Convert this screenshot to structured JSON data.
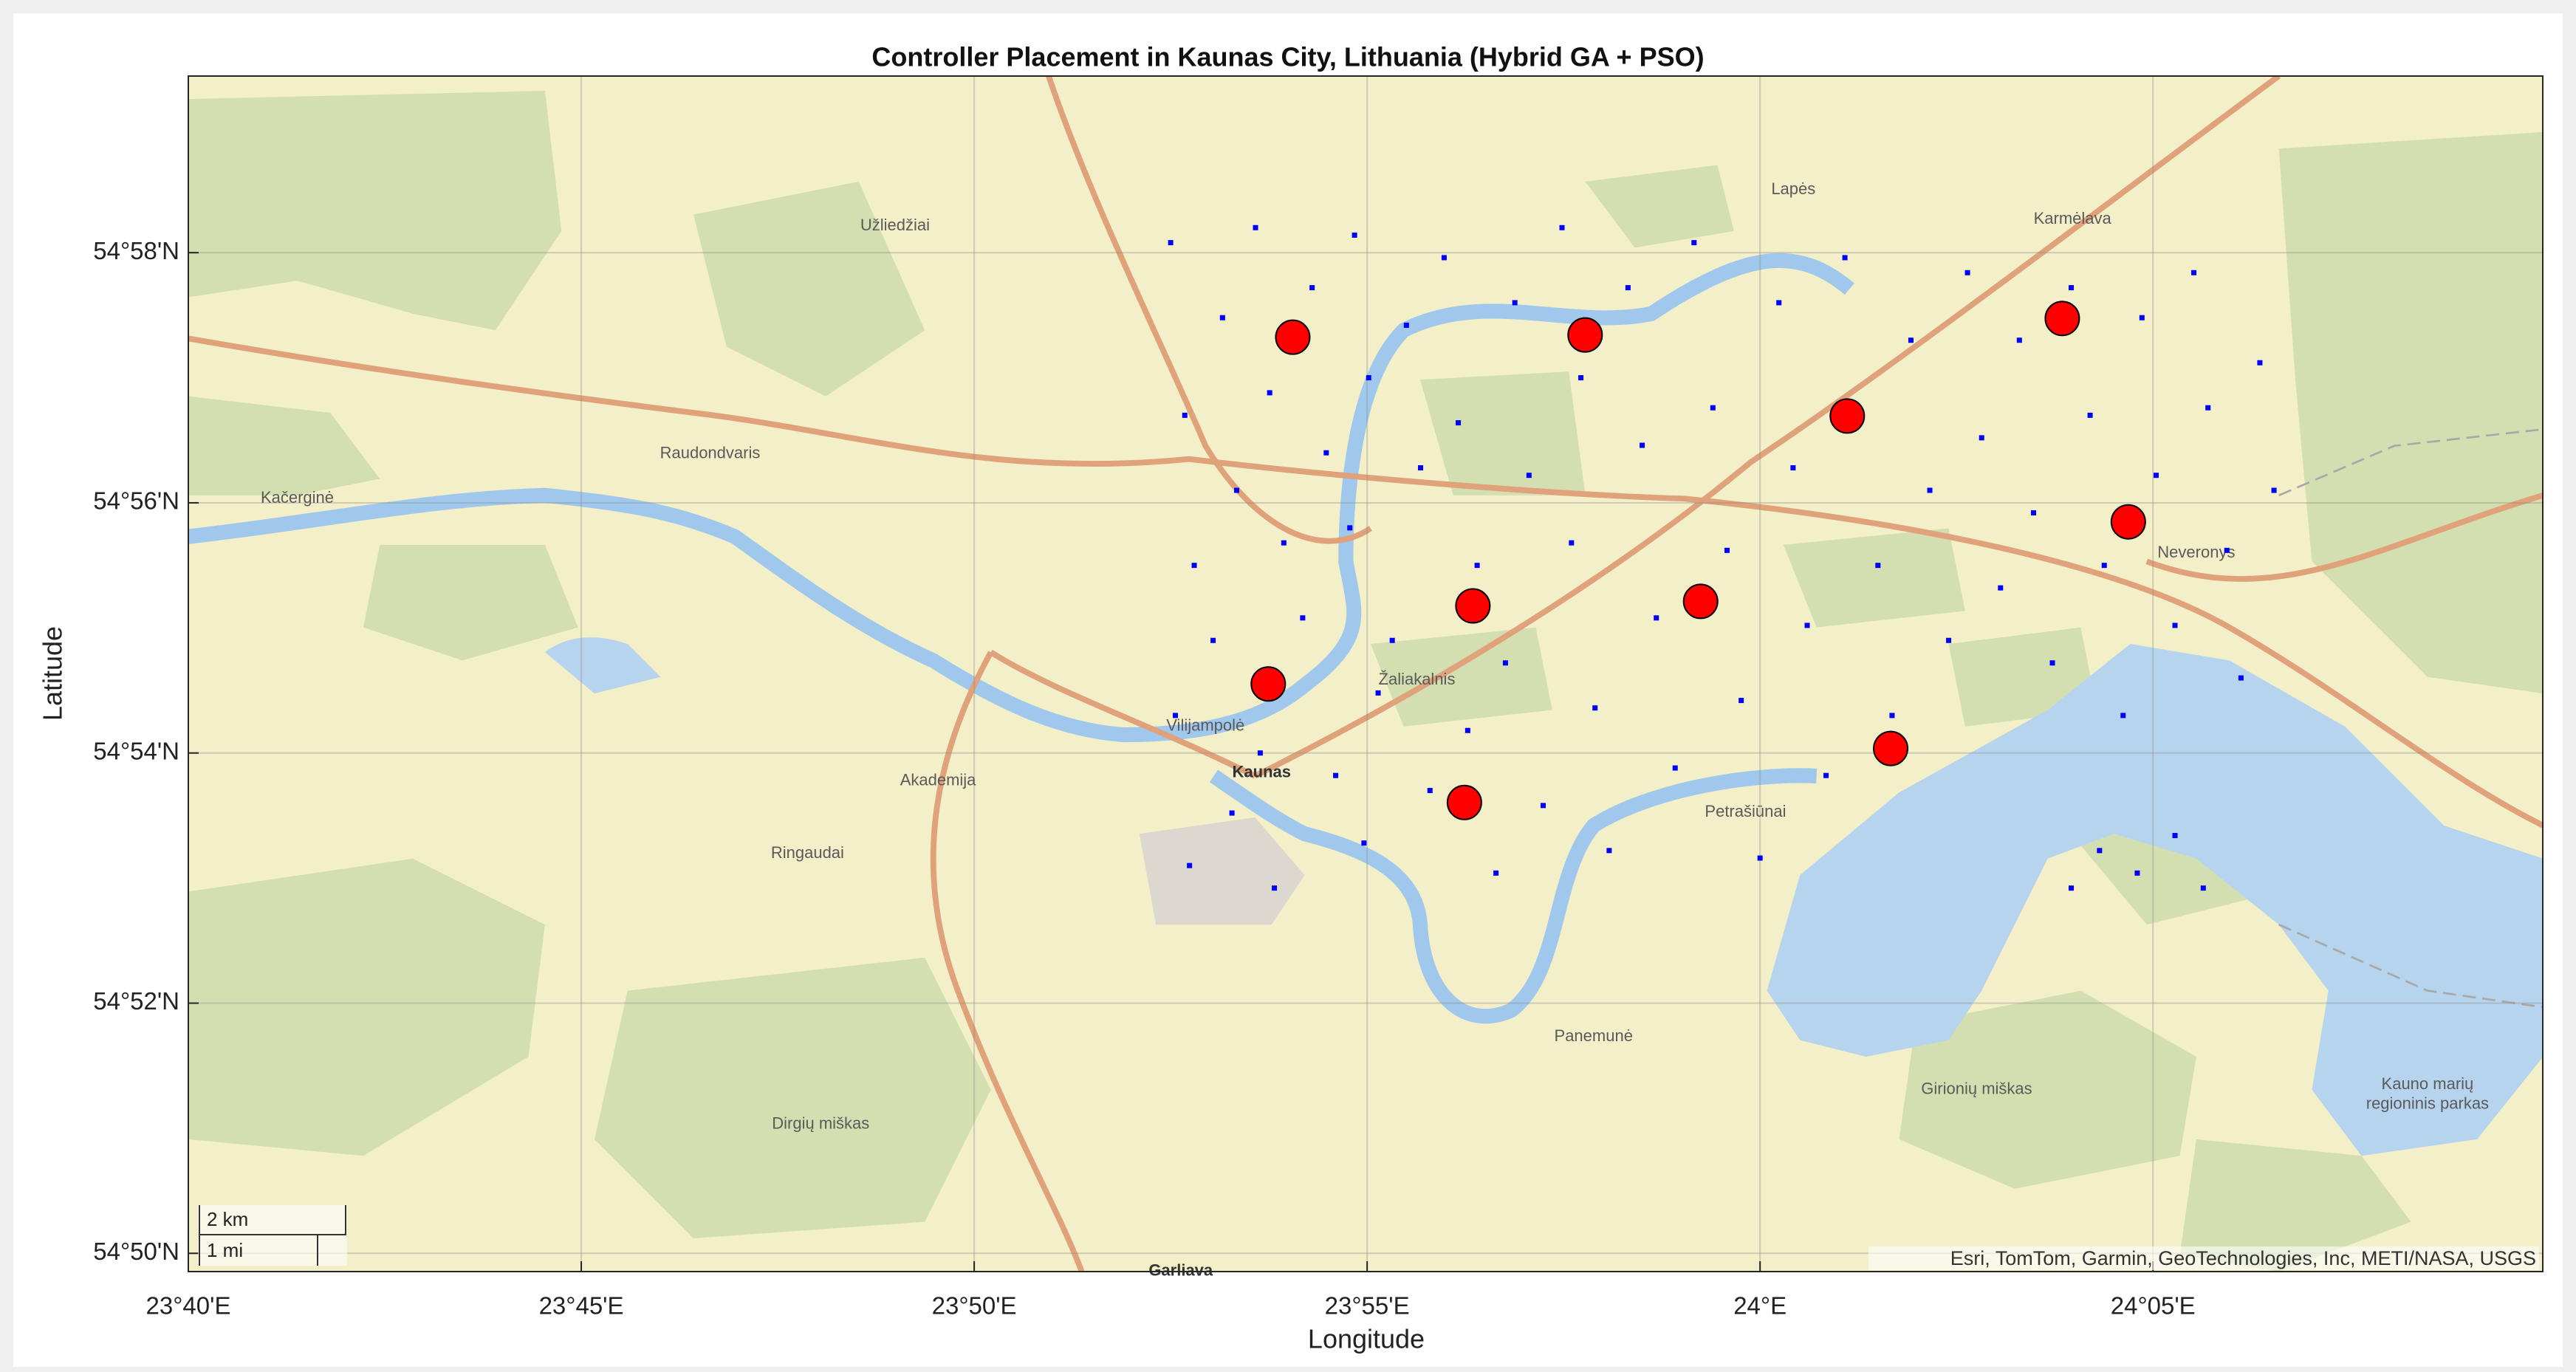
{
  "chart_data": {
    "type": "scatter",
    "title": "Controller Placement in Kaunas City, Lithuania (Hybrid GA + PSO)",
    "x_label": "Longitude",
    "y_label": "Latitude",
    "xlim": [
      23.666667,
      24.166
    ],
    "ylim": [
      54.8309,
      54.9902
    ],
    "xticks": [
      {
        "value": 23.666667,
        "label": "23°40'E"
      },
      {
        "value": 23.75,
        "label": "23°45'E"
      },
      {
        "value": 23.833333,
        "label": "23°50'E"
      },
      {
        "value": 23.916667,
        "label": "23°55'E"
      },
      {
        "value": 24,
        "label": "24°E"
      },
      {
        "value": 24.083333,
        "label": "24°05'E"
      }
    ],
    "yticks": [
      {
        "value": 54.833333,
        "label": "54°50'N"
      },
      {
        "value": 54.866667,
        "label": "54°52'N"
      },
      {
        "value": 54.9,
        "label": "54°54'N"
      },
      {
        "value": 54.933333,
        "label": "54°56'N"
      },
      {
        "value": 54.966667,
        "label": "54°58'N"
      }
    ],
    "grid": true,
    "series": [
      {
        "color": "#0000ff",
        "marker": "square",
        "x": [
          23.875,
          23.878,
          23.88,
          23.876,
          23.879,
          23.886,
          23.889,
          23.884,
          23.888,
          23.893,
          23.896,
          23.899,
          23.894,
          23.897,
          23.905,
          23.908,
          23.903,
          23.91,
          23.914,
          23.917,
          23.913,
          23.919,
          23.916,
          23.925,
          23.928,
          23.922,
          23.93,
          23.933,
          23.936,
          23.94,
          23.938,
          23.944,
          23.948,
          23.951,
          23.946,
          23.954,
          23.958,
          23.962,
          23.96,
          23.965,
          23.968,
          23.972,
          23.975,
          23.978,
          23.982,
          23.986,
          23.99,
          23.993,
          23.996,
          24.0,
          24.004,
          24.007,
          24.01,
          24.014,
          24.018,
          24.021,
          24.025,
          24.028,
          24.032,
          24.036,
          24.04,
          24.044,
          24.047,
          24.051,
          24.055,
          24.058,
          24.062,
          24.066,
          24.07,
          24.073,
          24.077,
          24.081,
          24.084,
          24.088,
          24.092,
          24.095,
          24.099,
          24.102,
          24.106,
          24.109,
          24.072,
          24.08,
          24.088,
          24.094,
          24.066
        ],
        "values": [
          54.968,
          54.945,
          54.925,
          54.905,
          54.885,
          54.958,
          54.935,
          54.915,
          54.892,
          54.97,
          54.948,
          54.928,
          54.9,
          54.882,
          54.962,
          54.94,
          54.918,
          54.897,
          54.969,
          54.95,
          54.93,
          54.908,
          54.888,
          54.957,
          54.938,
          54.915,
          54.895,
          54.966,
          54.944,
          54.925,
          54.903,
          54.884,
          54.96,
          54.937,
          54.912,
          54.893,
          54.97,
          54.95,
          54.928,
          54.906,
          54.887,
          54.962,
          54.941,
          54.918,
          54.898,
          54.968,
          54.946,
          54.927,
          54.907,
          54.886,
          54.96,
          54.938,
          54.917,
          54.897,
          54.966,
          54.944,
          54.925,
          54.905,
          54.955,
          54.935,
          54.915,
          54.964,
          54.942,
          54.922,
          54.955,
          54.932,
          54.912,
          54.962,
          54.945,
          54.925,
          54.905,
          54.958,
          54.937,
          54.917,
          54.964,
          54.946,
          54.927,
          54.91,
          54.952,
          54.935,
          54.887,
          54.884,
          54.889,
          54.882,
          54.882
        ]
      },
      {
        "color": "#ff0000",
        "marker": "circle",
        "x": [
          23.9009,
          23.9629,
          24.0641,
          24.0185,
          24.0781,
          23.9391,
          23.9874,
          23.8957,
          24.0277,
          23.9373
        ],
        "values": [
          54.9554,
          54.9557,
          54.9579,
          54.9449,
          54.9308,
          54.9196,
          54.9202,
          54.9092,
          54.9006,
          54.8934
        ]
      }
    ],
    "attribution": "Esri, TomTom, Garmin, GeoTechnologies, Inc, METI/NASA, USGS",
    "scalebar": [
      "2 km",
      "1 mi"
    ],
    "place_labels": [
      "Kaunas",
      "Vilijampolė",
      "Akademija",
      "Ringaudai",
      "Raudondvaris",
      "Kačerginė",
      "Užliedžiai",
      "Lapės",
      "Karmėlava",
      "Neveronys",
      "Panemunė",
      "Garliava",
      "Petrašiūnai",
      "Žaliakalnis",
      "Girionių miškas",
      "Dirgių miškas",
      "Kauno marių",
      "regioninis parkas"
    ]
  }
}
